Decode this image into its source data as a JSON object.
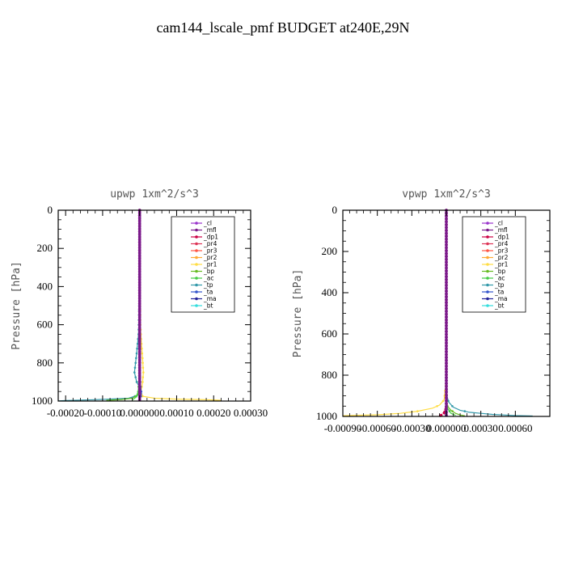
{
  "title": "cam144_lscale_pmf  BUDGET at240E,29N",
  "series_colors": {
    "_cl": "#9933cc",
    "_mfl": "#7a1a8a",
    "_dp1": "#cc0044",
    "_pr4": "#dd3355",
    "_pr3": "#ff5544",
    "_pr2": "#ffaa33",
    "_pr1": "#ffdd44",
    "_bp": "#66bb22",
    "_ac": "#44cc44",
    "_tp": "#3399aa",
    "_ta": "#3355cc",
    "_ma": "#222299",
    "_bt": "#33dddd"
  },
  "chart_data": [
    {
      "type": "line",
      "title": "upwp   1xm^2/s^3",
      "ylabel": "Pressure [hPa]",
      "xlim": [
        -0.00022,
        0.0003
      ],
      "ylim": [
        1000,
        0
      ],
      "xticks": [
        -0.0002,
        -0.0001,
        0.0,
        0.0001,
        0.0002,
        0.0003
      ],
      "xtick_labels": [
        "-0.00020",
        "-0.00010",
        "0.000000",
        "0.00010",
        "0.00020",
        "0.00030"
      ],
      "yticks": [
        0,
        200,
        400,
        600,
        800,
        1000
      ],
      "ytick_labels": [
        "0",
        "200",
        "400",
        "600",
        "800",
        "1000"
      ],
      "legend": {
        "entries": [
          "_cl",
          "_mfl",
          "_dp1",
          "_pr4",
          "_pr3",
          "_pr2",
          "_pr1",
          "_bp",
          "_ac",
          "_tp",
          "_ta",
          "_ma",
          "_bt"
        ],
        "placement": "top-right"
      },
      "series": [
        {
          "name": "_pr1",
          "x": [
            0,
            0,
            2e-06,
            5e-06,
            8e-06,
            1e-05,
            8e-06,
            4e-06,
            8e-06,
            4e-05,
            0.0001,
            0.00016,
            0.0002,
            0.00022
          ],
          "y": [
            0,
            300,
            600,
            700,
            780,
            850,
            900,
            950,
            975,
            985,
            990,
            992,
            994,
            996
          ]
        },
        {
          "name": "_tp",
          "x": [
            0,
            0,
            -3e-06,
            -8e-06,
            -1.4e-05,
            -8e-06,
            2e-06,
            4e-06,
            -3e-05,
            -8e-05,
            -0.00012,
            -0.00016,
            -0.0002,
            -0.00022
          ],
          "y": [
            0,
            400,
            650,
            750,
            850,
            900,
            935,
            965,
            985,
            990,
            993,
            995,
            997,
            999
          ]
        },
        {
          "name": "_bp",
          "x": [
            0,
            0,
            2e-06,
            -6e-06,
            -2e-05,
            -5e-05,
            -9e-05
          ],
          "y": [
            0,
            800,
            940,
            970,
            985,
            992,
            996
          ]
        },
        {
          "name": "_ac",
          "x": [
            0,
            0,
            -4e-06,
            -1e-05,
            -2e-05
          ],
          "y": [
            0,
            850,
            950,
            980,
            995
          ]
        },
        {
          "name": "_ta",
          "x": [
            0,
            0,
            3e-06,
            5e-06,
            2e-06
          ],
          "y": [
            0,
            850,
            930,
            960,
            990
          ]
        },
        {
          "name": "_dp1",
          "x": [
            0,
            0
          ],
          "y": [
            0,
            1000
          ]
        },
        {
          "name": "_cl",
          "x": [
            0,
            0
          ],
          "y": [
            0,
            1000
          ]
        },
        {
          "name": "_mfl",
          "x": [
            0,
            0
          ],
          "y": [
            0,
            1000
          ]
        }
      ]
    },
    {
      "type": "line",
      "title": "vpwp   1xm^2/s^3",
      "ylabel": "Pressure [hPa]",
      "xlim": [
        -0.0009,
        0.0009
      ],
      "ylim": [
        1000,
        0
      ],
      "xticks": [
        -0.0009,
        -0.0006,
        -0.0003,
        0.0,
        0.0003,
        0.0006
      ],
      "xtick_labels": [
        "-0.00090",
        "-0.00060",
        "-0.00030",
        "0.000000",
        "0.00030",
        "0.00060"
      ],
      "yticks": [
        0,
        200,
        400,
        600,
        800,
        1000
      ],
      "ytick_labels": [
        "0",
        "200",
        "400",
        "600",
        "800",
        "1000"
      ],
      "legend": {
        "entries": [
          "_cl",
          "_mfl",
          "_dp1",
          "_pr4",
          "_pr3",
          "_pr2",
          "_pr1",
          "_bp",
          "_ac",
          "_tp",
          "_ta",
          "_ma",
          "_bt"
        ],
        "placement": "top-right"
      },
      "series": [
        {
          "name": "_pr1",
          "x": [
            0,
            0,
            -5e-06,
            -2e-05,
            -6e-05,
            -0.00012,
            -0.00025,
            -0.0004,
            -0.0006,
            -0.0008,
            -0.0009
          ],
          "y": [
            0,
            700,
            850,
            920,
            945,
            960,
            975,
            985,
            992,
            995,
            997
          ]
        },
        {
          "name": "_tp",
          "x": [
            0,
            0,
            5e-06,
            2e-05,
            6e-05,
            0.00012,
            0.0002,
            0.0003,
            0.0004,
            0.0005,
            0.0006,
            0.00075
          ],
          "y": [
            0,
            800,
            900,
            930,
            955,
            970,
            980,
            985,
            990,
            993,
            996,
            998
          ]
        },
        {
          "name": "_bp",
          "x": [
            0,
            0,
            1e-05,
            4e-05,
            8e-05,
            0.00012,
            0.00016
          ],
          "y": [
            0,
            900,
            950,
            970,
            985,
            993,
            997
          ]
        },
        {
          "name": "_ac",
          "x": [
            0,
            0,
            1e-05,
            4e-05,
            8e-05
          ],
          "y": [
            0,
            920,
            960,
            985,
            995
          ]
        },
        {
          "name": "_dp1",
          "x": [
            0,
            0,
            -8e-06,
            -3e-05,
            -6e-05
          ],
          "y": [
            0,
            950,
            975,
            990,
            998
          ]
        },
        {
          "name": "_cl",
          "x": [
            0,
            0
          ],
          "y": [
            0,
            1000
          ]
        },
        {
          "name": "_mfl",
          "x": [
            0,
            0
          ],
          "y": [
            0,
            1000
          ]
        }
      ]
    }
  ]
}
